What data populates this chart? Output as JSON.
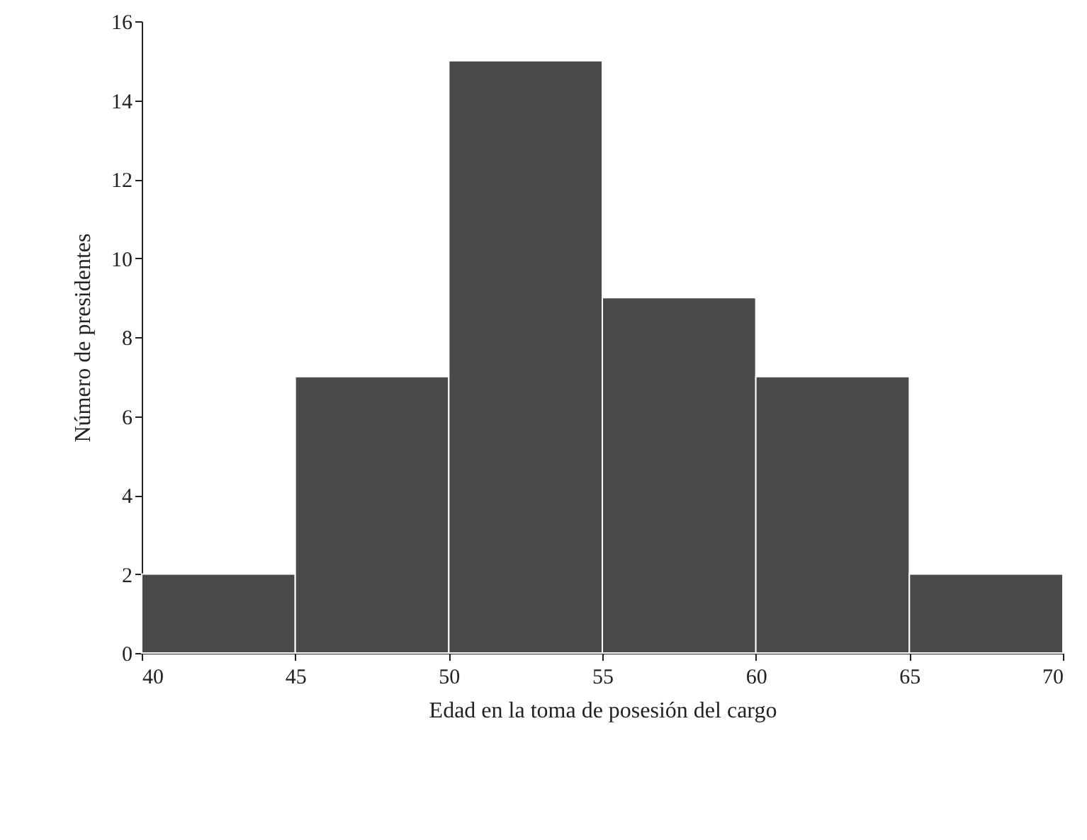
{
  "chart_data": {
    "type": "histogram",
    "xlabel": "Edad en la toma de posesión del cargo",
    "ylabel": "Número de presidentes",
    "bins": [
      40,
      45,
      50,
      55,
      60,
      65,
      70
    ],
    "values": [
      2,
      7,
      15,
      9,
      7,
      2
    ],
    "color": "#4a4a4a",
    "xlim": [
      40,
      70
    ],
    "xticks": [
      40,
      45,
      50,
      55,
      60,
      65,
      70
    ],
    "ylim": [
      0,
      16
    ],
    "yticks": [
      0,
      2,
      4,
      6,
      8,
      10,
      12,
      14,
      16
    ],
    "grid": false
  }
}
